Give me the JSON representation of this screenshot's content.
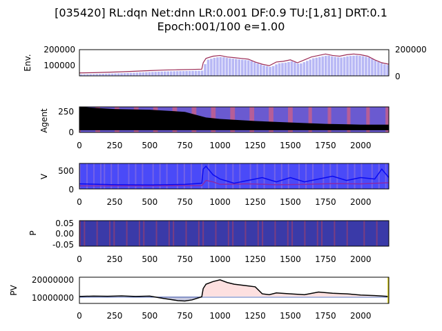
{
  "title_line1": "[035420] RL:dqn Net:dnn LR:0.001 DF:0.9 TU:[1,81] DRT:0.1",
  "title_line2": "Epoch:001/100 e=1.00",
  "xticks": [
    "0",
    "250",
    "500",
    "750",
    "1000",
    "1250",
    "1500",
    "1750",
    "2000"
  ],
  "panels": [
    {
      "id": "env",
      "ylabel": "Env.",
      "yticks": [
        "100000",
        "200000"
      ],
      "yticks_right": [
        "0",
        "200000"
      ]
    },
    {
      "id": "agent",
      "ylabel": "Agent",
      "yticks": [
        "0",
        "250"
      ]
    },
    {
      "id": "v",
      "ylabel": "V",
      "yticks": [
        "0",
        "500"
      ]
    },
    {
      "id": "p",
      "ylabel": "P",
      "yticks": [
        "0.05",
        "0.00",
        "-0.05"
      ]
    },
    {
      "id": "pv",
      "ylabel": "PV",
      "yticks": [
        "10000000",
        "20000000"
      ]
    }
  ],
  "chart_data": {
    "type": "line",
    "x_range": [
      0,
      2200
    ],
    "series": [
      {
        "panel": "Env.",
        "kind": "price line",
        "x": [
          0,
          100,
          200,
          300,
          400,
          500,
          600,
          700,
          800,
          870,
          880,
          900,
          950,
          1000,
          1050,
          1100,
          1150,
          1200,
          1250,
          1300,
          1350,
          1400,
          1450,
          1500,
          1550,
          1600,
          1650,
          1700,
          1750,
          1800,
          1850,
          1900,
          1950,
          2000,
          2050,
          2100,
          2150,
          2200
        ],
        "y": [
          50000,
          52000,
          55000,
          58000,
          62000,
          66000,
          70000,
          72000,
          74000,
          76000,
          120000,
          150000,
          165000,
          170000,
          160000,
          155000,
          150000,
          145000,
          125000,
          110000,
          100000,
          125000,
          130000,
          140000,
          120000,
          140000,
          160000,
          170000,
          180000,
          170000,
          165000,
          175000,
          180000,
          175000,
          165000,
          140000,
          120000,
          110000
        ],
        "ylim": [
          30000,
          210000
        ]
      },
      {
        "panel": "Agent",
        "kind": "holdings",
        "x": [
          0,
          250,
          500,
          750,
          900,
          1000,
          1250,
          1500,
          1750,
          2000,
          2200
        ],
        "y": [
          330,
          300,
          290,
          260,
          180,
          160,
          130,
          110,
          90,
          80,
          80
        ],
        "ylim": [
          -30,
          330
        ]
      },
      {
        "panel": "V",
        "kind": "value upper",
        "x": [
          0,
          250,
          500,
          750,
          870,
          880,
          900,
          950,
          1000,
          1100,
          1200,
          1300,
          1400,
          1500,
          1600,
          1700,
          1800,
          1900,
          2000,
          2100,
          2150,
          2200
        ],
        "y": [
          80,
          50,
          40,
          60,
          100,
          600,
          700,
          400,
          250,
          100,
          200,
          300,
          150,
          300,
          150,
          250,
          350,
          200,
          300,
          250,
          600,
          300
        ],
        "ylim": [
          -100,
          800
        ]
      },
      {
        "panel": "V",
        "kind": "value lower",
        "x": [
          0,
          500,
          870,
          900,
          950,
          1000,
          1200,
          1400,
          1600,
          1800,
          2000,
          2200
        ],
        "y": [
          10,
          10,
          20,
          200,
          150,
          60,
          80,
          50,
          60,
          90,
          80,
          120
        ],
        "ylim": [
          -100,
          800
        ]
      },
      {
        "panel": "PV",
        "kind": "portfolio value",
        "x": [
          0,
          100,
          200,
          300,
          400,
          500,
          550,
          600,
          650,
          700,
          750,
          800,
          870,
          880,
          900,
          950,
          1000,
          1050,
          1100,
          1150,
          1200,
          1250,
          1300,
          1350,
          1400,
          1500,
          1600,
          1700,
          1800,
          1900,
          2000,
          2100,
          2200
        ],
        "y": [
          10000000,
          10200000,
          10100000,
          10300000,
          10000000,
          10200000,
          9500000,
          8800000,
          8200000,
          7600000,
          7400000,
          8000000,
          9800000,
          14500000,
          17000000,
          18500000,
          19500000,
          18000000,
          17000000,
          16500000,
          16000000,
          15500000,
          11500000,
          11000000,
          12000000,
          11500000,
          11000000,
          12500000,
          11800000,
          11500000,
          10800000,
          10500000,
          10000000
        ],
        "ylim": [
          6000000,
          21000000
        ]
      }
    ]
  },
  "colors": {
    "price": "#9b2a55",
    "bars": "#b8b8f5",
    "bars_dark": "#2a2acc",
    "agent_bg": "#6a5ad0",
    "agent_fill": "#000000",
    "v_bg": "#4a4af8",
    "v_line": "#0a0af0",
    "v_line2": "#8a2aa8",
    "p_bg": "#3a3aa8",
    "pv_line": "#000000",
    "pv_fill": "#fde0e0",
    "pv_base": "#1f3da0"
  }
}
